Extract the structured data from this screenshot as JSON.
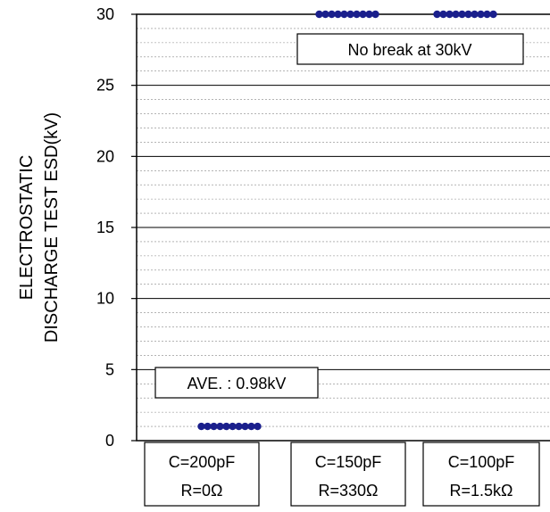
{
  "chart_data": {
    "type": "scatter",
    "ylabel_lines": [
      "ELECTROSTATIC",
      "DISCHARGE TEST ESD(kV)"
    ],
    "ylim": [
      0,
      30
    ],
    "y_ticks": [
      "0",
      "5",
      "10",
      "15",
      "20",
      "25",
      "30"
    ],
    "major_grid_step": 5,
    "minor_grid_step": 1,
    "categories": [
      {
        "line1": "C=200pF",
        "line2": "R=0Ω"
      },
      {
        "line1": "C=150pF",
        "line2": "R=330Ω"
      },
      {
        "line1": "C=100pF",
        "line2": "R=1.5kΩ"
      }
    ],
    "series": [
      {
        "category_index": 0,
        "values": [
          1,
          1,
          1,
          1,
          1,
          1,
          1,
          1,
          1,
          1
        ]
      },
      {
        "category_index": 1,
        "values": [
          30,
          30,
          30,
          30,
          30,
          30,
          30,
          30,
          30,
          30
        ]
      },
      {
        "category_index": 2,
        "values": [
          30,
          30,
          30,
          30,
          30,
          30,
          30,
          30,
          30,
          30
        ]
      }
    ],
    "marker_color": "#1a1f8c",
    "annotations": [
      {
        "text": "No break at 30kV"
      },
      {
        "text": "AVE. : 0.98kV"
      }
    ]
  }
}
